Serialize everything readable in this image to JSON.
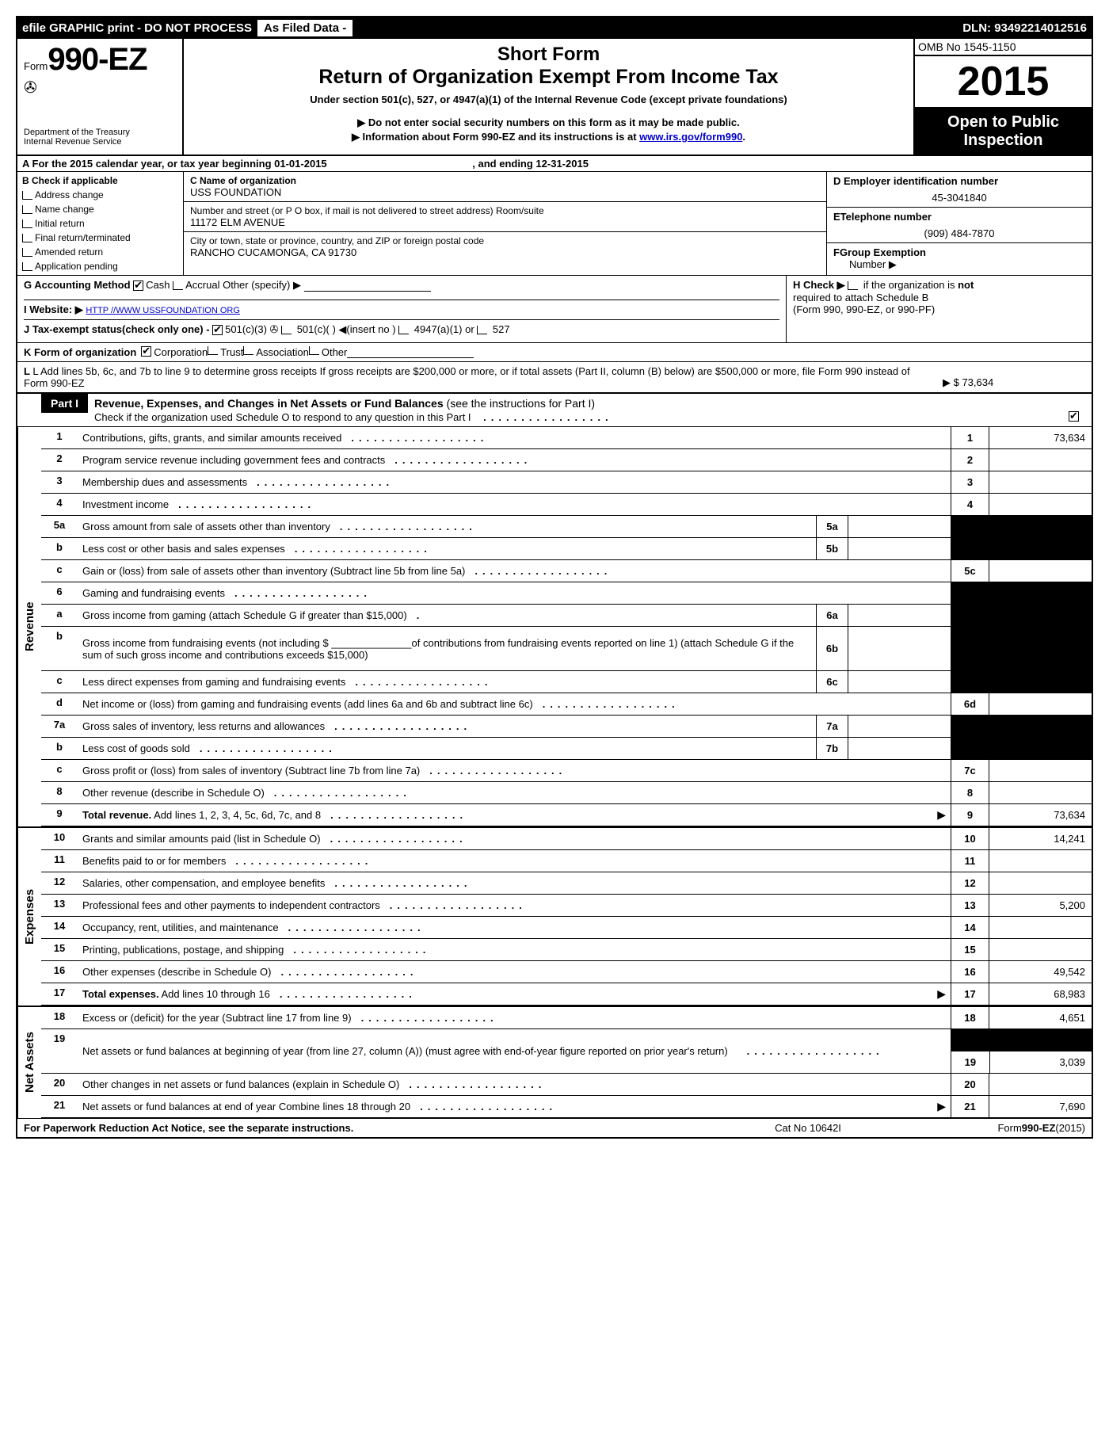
{
  "topbar": {
    "left": "efile GRAPHIC print - DO NOT PROCESS",
    "mid": "As Filed Data -",
    "right": "DLN: 93492214012516"
  },
  "header": {
    "form_prefix": "Form",
    "form_number": "990-EZ",
    "dept1": "Department of the Treasury",
    "dept2": "Internal Revenue Service",
    "title1": "Short Form",
    "title2": "Return of Organization Exempt From Income Tax",
    "subtitle": "Under section 501(c), 527, or 4947(a)(1) of the Internal Revenue Code (except private foundations)",
    "arrow1": "▶ Do not enter social security numbers on this form as it may be made public.",
    "arrow2_pre": "▶ Information about Form 990-EZ and its instructions is at ",
    "arrow2_link": "www.irs.gov/form990",
    "arrow2_post": ".",
    "omb": "OMB No  1545-1150",
    "year": "2015",
    "inspection1": "Open to Public",
    "inspection2": "Inspection"
  },
  "rowA": {
    "label": "A  For the 2015 calendar year, or tax year beginning 01-01-2015",
    "ending": ", and ending 12-31-2015"
  },
  "colB": {
    "header": "B  Check if applicable",
    "opts": [
      "Address change",
      "Name change",
      "Initial return",
      "Final return/terminated",
      "Amended return",
      "Application pending"
    ]
  },
  "colC": {
    "name_label": "C Name of organization",
    "name_value": "USS FOUNDATION",
    "street_label": "Number and street (or P  O  box, if mail is not delivered to street address) Room/suite",
    "street_value": "11172 ELM AVENUE",
    "city_label": "City or town, state or province, country, and ZIP or foreign postal code",
    "city_value": "RANCHO CUCAMONGA, CA  91730"
  },
  "colD": {
    "label": "D Employer identification number",
    "value": "45-3041840"
  },
  "colE": {
    "label": "ETelephone number",
    "value": "(909) 484-7870"
  },
  "colF": {
    "label": "FGroup Exemption",
    "label2": "Number    ▶"
  },
  "rowG": {
    "label": "G Accounting Method  ",
    "cash": "Cash  ",
    "accrual": "Accrual   Other (specify) ▶"
  },
  "rowH": {
    "text1": "H  Check ▶ ",
    "text2": " if the organization is ",
    "text3": "not",
    "text4": "required to attach Schedule B",
    "text5": "(Form 990, 990-EZ, or 990-PF)"
  },
  "rowI": {
    "label": "I Website: ▶ ",
    "value": "HTTP //WWW USSFOUNDATION ORG"
  },
  "rowJ": {
    "text": "J Tax-exempt status(check only one) -",
    "opt1": "501(c)(3)",
    "opt2": " 501(c)(  ) ◀(insert no )",
    "opt3": " 4947(a)(1) or ",
    "opt4": " 527"
  },
  "rowK": {
    "text": "K Form of organization  ",
    "opts": [
      "Corporation  ",
      "Trust  ",
      "Association  ",
      "Other"
    ]
  },
  "rowL": {
    "text": "L Add lines 5b, 6c, and 7b to line 9 to determine gross receipts  If gross receipts are $200,000 or more, or if total assets (Part II, column (B) below) are $500,000 or more, file Form 990 instead of Form 990-EZ",
    "amount": "▶ $ 73,634"
  },
  "part1": {
    "label": "Part I",
    "title": "Revenue, Expenses, and Changes in Net Assets or Fund Balances",
    "title_note": "(see the instructions for Part I)",
    "sub": "Check if the organization used Schedule O to respond to any question in this Part I"
  },
  "sections": {
    "revenue": "Revenue",
    "expenses": "Expenses",
    "netassets": "Net Assets"
  },
  "lines": [
    {
      "num": "1",
      "desc": "Contributions, gifts, grants, and similar amounts received",
      "endnum": "1",
      "endval": "73,634"
    },
    {
      "num": "2",
      "desc": "Program service revenue including government fees and contracts",
      "endnum": "2",
      "endval": ""
    },
    {
      "num": "3",
      "desc": "Membership dues and assessments",
      "endnum": "3",
      "endval": ""
    },
    {
      "num": "4",
      "desc": "Investment income",
      "endnum": "4",
      "endval": ""
    },
    {
      "num": "5a",
      "desc": "Gross amount from sale of assets other than inventory",
      "subnum": "5a",
      "shade_end": true
    },
    {
      "num": "b",
      "desc": "Less  cost or other basis and sales expenses",
      "subnum": "5b",
      "shade_end": true
    },
    {
      "num": "c",
      "desc": "Gain or (loss) from sale of assets other than inventory (Subtract line 5b from line 5a)",
      "endnum": "5c",
      "endval": ""
    },
    {
      "num": "6",
      "desc": "Gaming and fundraising events",
      "shade_end": true,
      "no_end": true
    },
    {
      "num": "a",
      "desc": "Gross income from gaming (attach Schedule G if greater than $15,000)",
      "subnum": "6a",
      "shade_end": true,
      "dot": "."
    },
    {
      "num": "b",
      "desc": "Gross income from fundraising events (not including $ ______________of contributions from fundraising events reported on line 1) (attach Schedule G if the sum of such gross income and contributions exceeds $15,000)",
      "subnum": "6b",
      "shade_end": true,
      "tall": true
    },
    {
      "num": "c",
      "desc": "Less  direct expenses from gaming and fundraising events",
      "subnum": "6c",
      "shade_end": true
    },
    {
      "num": "d",
      "desc": "Net income or (loss) from gaming and fundraising events (add lines 6a and 6b and subtract line 6c)",
      "endnum": "6d",
      "endval": ""
    },
    {
      "num": "7a",
      "desc": "Gross sales of inventory, less returns and allowances",
      "subnum": "7a",
      "shade_end": true
    },
    {
      "num": "b",
      "desc": "Less  cost of goods sold",
      "subnum": "7b",
      "shade_end": true
    },
    {
      "num": "c",
      "desc": "Gross profit or (loss) from sales of inventory (Subtract line 7b from line 7a)",
      "endnum": "7c",
      "endval": ""
    },
    {
      "num": "8",
      "desc": "Other revenue (describe in Schedule O)",
      "endnum": "8",
      "endval": ""
    },
    {
      "num": "9",
      "desc_bold": "Total revenue.",
      "desc": " Add lines 1, 2, 3, 4, 5c, 6d, 7c, and 8",
      "endnum": "9",
      "endval": "73,634",
      "arrow": true
    }
  ],
  "expense_lines": [
    {
      "num": "10",
      "desc": "Grants and similar amounts paid (list in Schedule O)",
      "endnum": "10",
      "endval": "14,241"
    },
    {
      "num": "11",
      "desc": "Benefits paid to or for members",
      "endnum": "11",
      "endval": ""
    },
    {
      "num": "12",
      "desc": "Salaries, other compensation, and employee benefits",
      "endnum": "12",
      "endval": ""
    },
    {
      "num": "13",
      "desc": "Professional fees and other payments to independent contractors",
      "endnum": "13",
      "endval": "5,200"
    },
    {
      "num": "14",
      "desc": "Occupancy, rent, utilities, and maintenance",
      "endnum": "14",
      "endval": ""
    },
    {
      "num": "15",
      "desc": "Printing, publications, postage, and shipping",
      "endnum": "15",
      "endval": ""
    },
    {
      "num": "16",
      "desc": "Other expenses (describe in Schedule O)",
      "endnum": "16",
      "endval": "49,542"
    },
    {
      "num": "17",
      "desc_bold": "Total expenses.",
      "desc": " Add lines 10 through 16",
      "endnum": "17",
      "endval": "68,983",
      "arrow": true
    }
  ],
  "netasset_lines": [
    {
      "num": "18",
      "desc": "Excess or (deficit) for the year (Subtract line 17 from line 9)",
      "endnum": "18",
      "endval": "4,651"
    },
    {
      "num": "19",
      "desc": "Net assets or fund balances at beginning of year (from line 27, column (A)) (must agree with end-of-year figure reported on prior year's return)",
      "endnum": "19",
      "endval": "3,039",
      "tall": true,
      "shade_first": true
    },
    {
      "num": "20",
      "desc": "Other changes in net assets or fund balances (explain in Schedule O)",
      "endnum": "20",
      "endval": ""
    },
    {
      "num": "21",
      "desc": "Net assets or fund balances at end of year  Combine lines 18 through 20",
      "endnum": "21",
      "endval": "7,690",
      "arrow": true
    }
  ],
  "footer": {
    "f1": "For Paperwork Reduction Act Notice, see the separate instructions.",
    "f2": "Cat  No  10642I",
    "f3_pre": "Form",
    "f3_bold": "990-EZ",
    "f3_post": "(2015)"
  }
}
